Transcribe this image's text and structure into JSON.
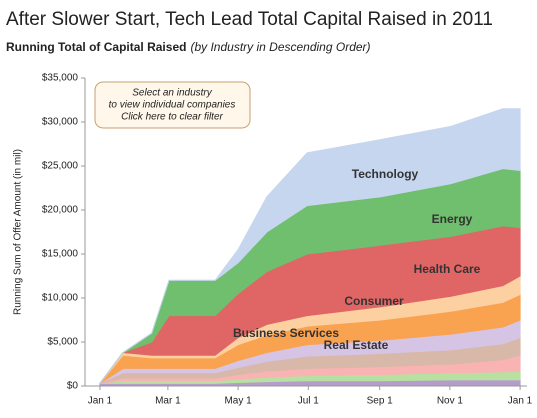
{
  "chart_data": {
    "type": "stacked_area",
    "title": "After Slower Start, Tech Lead Total Capital Raised in 2011",
    "subtitle": "Running Total of Capital Raised",
    "subtitle_note": "(by Industry in Descending Order)",
    "y_label": "Running Sum of Offer Amount (in mil)",
    "annotation": [
      "Select an industry",
      "to view individual companies",
      "Click here to clear filter"
    ],
    "x": [
      0,
      20,
      45,
      60,
      100,
      120,
      145,
      180,
      244,
      305,
      350,
      365
    ],
    "xlim": [
      -13,
      371
    ],
    "xticks": [
      {
        "value": 0,
        "label": "Jan 1"
      },
      {
        "value": 59,
        "label": "Mar 1"
      },
      {
        "value": 120,
        "label": "May 1"
      },
      {
        "value": 181,
        "label": "Jul 1"
      },
      {
        "value": 243,
        "label": "Sep 1"
      },
      {
        "value": 304,
        "label": "Nov 1"
      },
      {
        "value": 365,
        "label": "Jan 1"
      }
    ],
    "ylim": [
      0,
      35000
    ],
    "yticks": [
      {
        "value": 0,
        "label": "$0"
      },
      {
        "value": 5000,
        "label": "$5,000"
      },
      {
        "value": 10000,
        "label": "$10,000"
      },
      {
        "value": 15000,
        "label": "$15,000"
      },
      {
        "value": 20000,
        "label": "$20,000"
      },
      {
        "value": 25000,
        "label": "$25,000"
      },
      {
        "value": 30000,
        "label": "$30,000"
      },
      {
        "value": 35000,
        "label": "$35,000"
      }
    ],
    "grid": false,
    "series": [
      {
        "color": "#b49ccc",
        "values": [
          300,
          300,
          300,
          300,
          300,
          400,
          500,
          600,
          600,
          700,
          700,
          700
        ]
      },
      {
        "color": "#b8e0a0",
        "values": [
          0,
          300,
          300,
          300,
          300,
          400,
          500,
          600,
          700,
          800,
          900,
          1000
        ]
      },
      {
        "color": "#f9b3b3",
        "values": [
          0,
          300,
          300,
          300,
          300,
          500,
          700,
          800,
          900,
          1000,
          1400,
          1800
        ]
      },
      {
        "color": "#d8b8a8",
        "values": [
          0,
          600,
          600,
          600,
          600,
          800,
          1100,
          1400,
          1500,
          1600,
          1800,
          2000
        ]
      },
      {
        "name": "Real Estate",
        "color": "#d6c4e4",
        "values": [
          0,
          500,
          500,
          500,
          500,
          800,
          1000,
          1300,
          1500,
          1800,
          1900,
          2000
        ]
      },
      {
        "name": "Business Services",
        "color": "#f9a24f",
        "values": [
          0,
          1500,
          1200,
          1200,
          1200,
          1800,
          2000,
          2100,
          2300,
          2600,
          2800,
          2900
        ]
      },
      {
        "name": "Consumer",
        "color": "#fcd0a0",
        "values": [
          0,
          300,
          300,
          300,
          300,
          800,
          1200,
          1200,
          1500,
          1700,
          1900,
          2100
        ]
      },
      {
        "name": "Health Care",
        "color": "#e06666",
        "values": [
          0,
          0,
          1500,
          4500,
          4500,
          5000,
          6000,
          7000,
          7000,
          6800,
          6800,
          5500
        ]
      },
      {
        "name": "Energy",
        "color": "#6fbf6f",
        "values": [
          0,
          0,
          1000,
          4000,
          4000,
          3500,
          4500,
          5500,
          5500,
          6000,
          6500,
          6500
        ]
      },
      {
        "name": "Technology",
        "color": "#c6d6ef",
        "values": [
          0,
          0,
          0,
          0,
          0,
          1500,
          4000,
          6000,
          6500,
          6500,
          6800,
          7000
        ]
      }
    ]
  }
}
